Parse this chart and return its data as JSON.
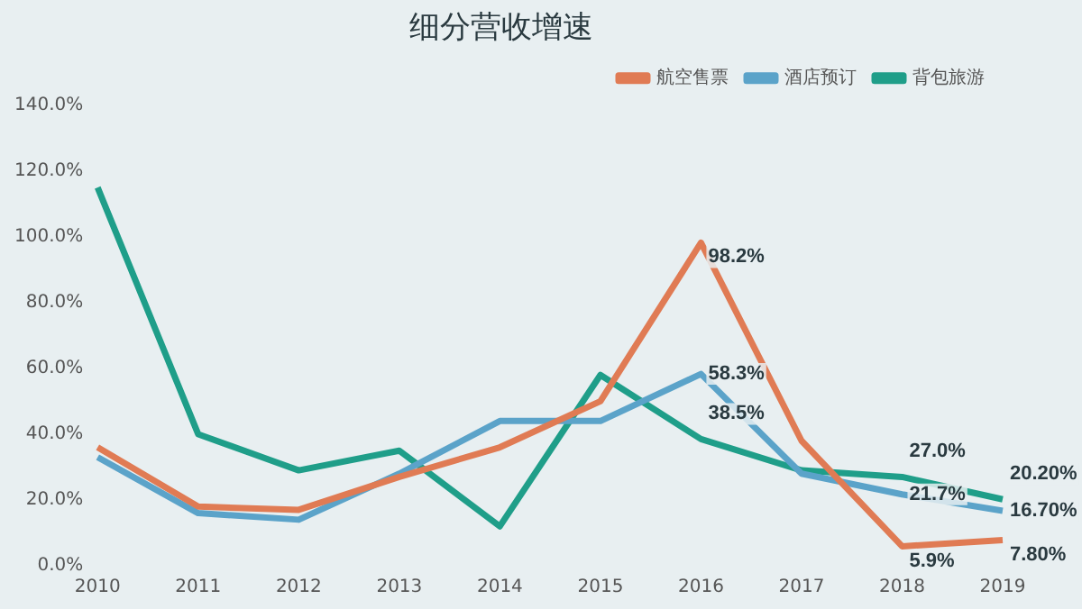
{
  "chart_data": {
    "type": "line",
    "title": "细分营收增速",
    "categories": [
      "2010",
      "2011",
      "2012",
      "2013",
      "2014",
      "2015",
      "2016",
      "2017",
      "2018",
      "2019"
    ],
    "series": [
      {
        "name": "航空售票",
        "color": "#e07b54",
        "values": [
          36,
          18,
          17,
          27,
          36,
          50,
          98.2,
          38,
          5.9,
          7.8
        ],
        "value_labels": [
          null,
          null,
          null,
          null,
          null,
          null,
          "98.2%",
          null,
          "5.9%",
          "7.80%"
        ]
      },
      {
        "name": "酒店预订",
        "color": "#5ba3c9",
        "values": [
          33,
          16,
          14,
          28,
          44,
          44,
          58.3,
          28,
          21.7,
          16.7
        ],
        "value_labels": [
          null,
          null,
          null,
          null,
          null,
          null,
          "58.3%",
          null,
          "21.7%",
          "16.70%"
        ]
      },
      {
        "name": "背包旅游",
        "color": "#1f9e89",
        "values": [
          115,
          40,
          29,
          35,
          12,
          58,
          38.5,
          29,
          27.0,
          20.2
        ],
        "value_labels": [
          null,
          null,
          null,
          null,
          null,
          null,
          "38.5%",
          null,
          "27.0%",
          "20.20%"
        ]
      }
    ],
    "ylim": [
      0,
      140
    ],
    "yticks": [
      {
        "value": 0,
        "label": "0.0%"
      },
      {
        "value": 20,
        "label": "20.0%"
      },
      {
        "value": 40,
        "label": "40.0%"
      },
      {
        "value": 60,
        "label": "60.0%"
      },
      {
        "value": 80,
        "label": "80.0%"
      },
      {
        "value": 100,
        "label": "100.0%"
      },
      {
        "value": 120,
        "label": "120.0%"
      },
      {
        "value": 140,
        "label": "140.0%"
      }
    ],
    "grid": false,
    "legend": "top right",
    "marker": "none",
    "line_style": "solid"
  }
}
